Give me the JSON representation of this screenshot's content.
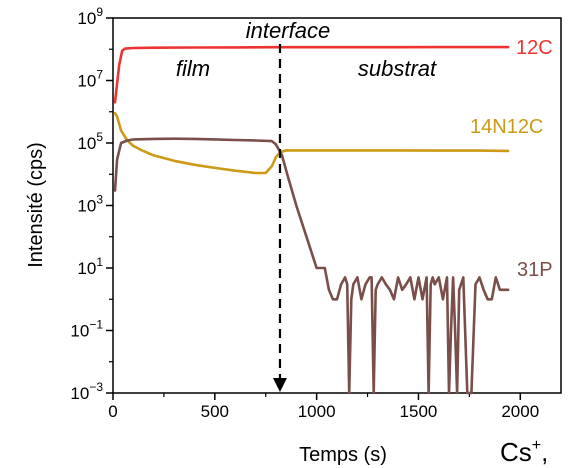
{
  "chart_data": {
    "type": "line",
    "xlabel": "Temps (s)",
    "ylabel": "Intensité (cps)",
    "xlim": [
      0,
      2200
    ],
    "ylim": [
      0.001,
      1000000000
    ],
    "y_scale": "log",
    "x_ticks": [
      "0",
      "500",
      "1000",
      "1500",
      "2000"
    ],
    "x_tick_values": [
      0,
      500,
      1000,
      1500,
      2000
    ],
    "y_tick_exponents": [
      -3,
      -1,
      1,
      3,
      5,
      7,
      9
    ],
    "grid": false,
    "annotations": {
      "interface": "interface",
      "film": "film",
      "substrat": "substrat",
      "interface_x": 820
    },
    "ion_label": "Cs",
    "ion_charge": "+",
    "ion_suffix": ",",
    "series": [
      {
        "name": "12C",
        "color": "#ee3333",
        "x": [
          10,
          20,
          30,
          45,
          60,
          100,
          200,
          400,
          600,
          800,
          1000,
          1200,
          1400,
          1600,
          1800,
          1940
        ],
        "y": [
          2000000,
          8000000,
          30000000,
          90000000,
          105000000,
          110000000,
          112000000,
          114000000,
          115000000,
          116000000,
          116000000,
          116000000,
          116000000,
          117000000,
          117000000,
          117000000
        ]
      },
      {
        "name": "14N12C",
        "color": "#cc9a16",
        "x": [
          10,
          20,
          40,
          70,
          100,
          150,
          200,
          300,
          400,
          500,
          600,
          700,
          750,
          780,
          800,
          820,
          850,
          900,
          1000,
          1200,
          1400,
          1600,
          1800,
          1940
        ],
        "y": [
          900000,
          700000,
          250000,
          120000,
          80000,
          55000,
          40000,
          27000,
          20000,
          16000,
          13000,
          11000,
          11000,
          18000,
          35000,
          50000,
          58000,
          58000,
          58000,
          58000,
          58000,
          57000,
          57000,
          56000
        ]
      },
      {
        "name": "31P",
        "color": "#7a4e4a",
        "x": [
          10,
          20,
          40,
          70,
          100,
          200,
          300,
          400,
          500,
          600,
          700,
          780,
          800,
          830,
          860,
          900,
          950,
          1000,
          1040,
          1060,
          1080,
          1100,
          1120,
          1140,
          1150,
          1160,
          1170,
          1180,
          1200,
          1220,
          1240,
          1260,
          1270,
          1280,
          1290,
          1300,
          1320,
          1340,
          1360,
          1380,
          1400,
          1420,
          1440,
          1460,
          1480,
          1500,
          1520,
          1540,
          1550,
          1560,
          1570,
          1580,
          1600,
          1620,
          1640,
          1650,
          1660,
          1670,
          1680,
          1690,
          1700,
          1720,
          1740,
          1760,
          1780,
          1800,
          1820,
          1840,
          1860,
          1880,
          1900,
          1920,
          1940
        ],
        "y": [
          3000,
          30000,
          100000,
          120000,
          130000,
          135000,
          137000,
          135000,
          130000,
          125000,
          120000,
          115000,
          90000,
          40000,
          8000,
          1000,
          100,
          10,
          10,
          2,
          1,
          1,
          3,
          5,
          3,
          0.001,
          1,
          3,
          5,
          1,
          3,
          5,
          5,
          0.001,
          2,
          3,
          5,
          3,
          2,
          1,
          5,
          2,
          3,
          5,
          1,
          5,
          1,
          5,
          0.001,
          3,
          5,
          3,
          5,
          1,
          5,
          0.001,
          0.1,
          5,
          0.1,
          0.001,
          2,
          5,
          0.001,
          0.001,
          3,
          5,
          2,
          1,
          1,
          5,
          2,
          2,
          2
        ]
      }
    ]
  }
}
